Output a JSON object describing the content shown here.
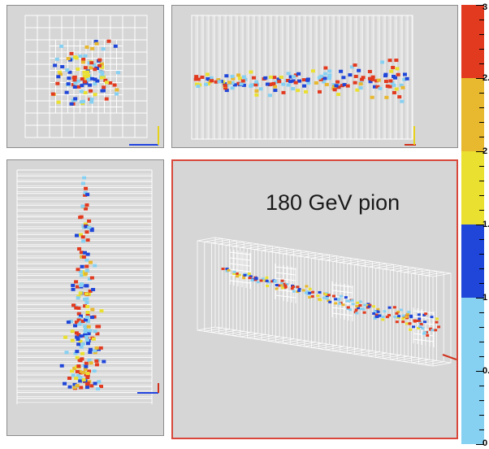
{
  "event": {
    "title": "180 GeV pion"
  },
  "scale": {
    "segments": [
      {
        "name": "red",
        "color": "#e23a1f",
        "from": 2.5,
        "to": 3.0
      },
      {
        "name": "gold",
        "color": "#e8b82e",
        "from": 2.0,
        "to": 2.5
      },
      {
        "name": "yellow",
        "color": "#eae030",
        "from": 1.5,
        "to": 2.0
      },
      {
        "name": "blue",
        "color": "#1f46d9",
        "from": 1.0,
        "to": 1.5
      },
      {
        "name": "light-blue",
        "color": "#86d0f2",
        "from": 0.0,
        "to": 1.0
      }
    ],
    "labels": [
      {
        "text": "3",
        "value": 3.0
      },
      {
        "text": "2.",
        "value": 2.5
      },
      {
        "text": "2",
        "value": 2.0
      },
      {
        "text": "1.",
        "value": 1.5
      },
      {
        "text": "1",
        "value": 1.0
      },
      {
        "text": "0.",
        "value": 0.5
      },
      {
        "text": "0",
        "value": 0.0
      }
    ]
  },
  "hit_colors": [
    "#e23a1f",
    "#e8b82e",
    "#eae030",
    "#1f46d9",
    "#86d0f2"
  ],
  "axis_colors": {
    "horizontal": "#2244e0",
    "vertical": "#e6d21a",
    "red": "#d0301c"
  }
}
